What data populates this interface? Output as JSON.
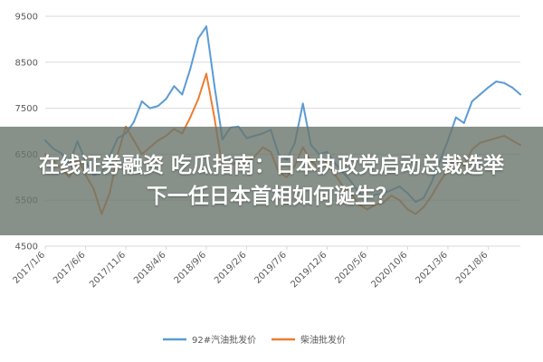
{
  "overlay": {
    "line1": "在线证券融资 吃瓜指南：日本执政党启动总裁选举",
    "line2": "下一任日本首相如何诞生？"
  },
  "colors": {
    "gasoline": "#5b9bd5",
    "diesel": "#ed7d31",
    "grid": "#d9d9d9",
    "axis_text": "#595959"
  },
  "chart_data": {
    "type": "line",
    "title": "",
    "xlabel": "",
    "ylabel": "",
    "ylim": [
      4500,
      9500
    ],
    "yticks": [
      4500,
      5500,
      6500,
      7500,
      8500,
      9500
    ],
    "grid": true,
    "legend_position": "bottom",
    "x_tick_labels": [
      "2017/1/6",
      "2017/6/6",
      "2017/11/6",
      "2018/4/6",
      "2018/9/6",
      "2019/2/6",
      "2019/7/6",
      "2019/12/6",
      "2020/5/6",
      "2020/10/6",
      "2021/3/6",
      "2021/8/6"
    ],
    "x_count": 60,
    "x_tick_index": [
      0,
      5,
      10,
      15,
      20,
      25,
      30,
      35,
      40,
      45,
      50,
      55
    ],
    "series": [
      {
        "name": "92#汽油批发价",
        "color": "#5b9bd5",
        "values": [
          6800,
          6620,
          6520,
          6300,
          6780,
          6350,
          6050,
          6100,
          6450,
          6850,
          6950,
          7200,
          7650,
          7500,
          7550,
          7700,
          7980,
          7800,
          8350,
          9020,
          9280,
          8000,
          6820,
          7080,
          7100,
          6850,
          6900,
          6950,
          7030,
          6480,
          6380,
          6750,
          7600,
          6700,
          6500,
          6550,
          6300,
          6100,
          5900,
          5650,
          5550,
          5620,
          5650,
          5720,
          5800,
          5650,
          5460,
          5550,
          5900,
          6350,
          6800,
          7300,
          7180,
          7650,
          7800,
          7950,
          8080,
          8050,
          7950,
          7800
        ]
      },
      {
        "name": "柴油批发价",
        "color": "#ed7d31",
        "values": [
          6500,
          6350,
          6200,
          6000,
          6450,
          6050,
          5750,
          5200,
          5650,
          6500,
          7100,
          6800,
          6500,
          6650,
          6800,
          6900,
          7050,
          6950,
          7300,
          7700,
          8250,
          7300,
          6200,
          6250,
          6350,
          6300,
          6450,
          6650,
          6550,
          6100,
          6000,
          6250,
          6650,
          6350,
          6200,
          6350,
          6050,
          5800,
          5650,
          5400,
          5300,
          5400,
          5450,
          5600,
          5500,
          5300,
          5200,
          5350,
          5600,
          5900,
          6150,
          6400,
          6250,
          6600,
          6750,
          6800,
          6850,
          6900,
          6800,
          6700
        ]
      }
    ]
  }
}
